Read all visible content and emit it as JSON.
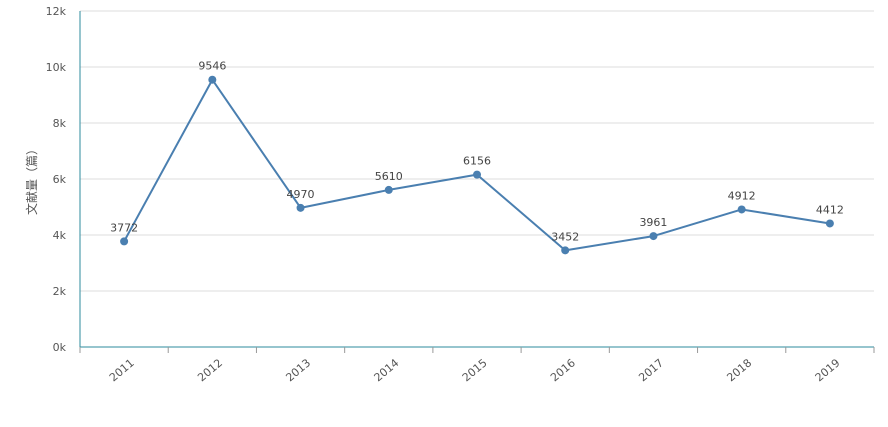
{
  "chart_data": {
    "type": "line",
    "title": "",
    "xlabel": "",
    "ylabel": "文献量（篇）",
    "categories": [
      "2011",
      "2012",
      "2013",
      "2014",
      "2015",
      "2016",
      "2017",
      "2018",
      "2019"
    ],
    "series": [
      {
        "values": [
          3772,
          9546,
          4970,
          5610,
          6156,
          3452,
          3961,
          4912,
          4412
        ]
      }
    ],
    "ylim": [
      0,
      12000
    ],
    "yticks": [
      0,
      2000,
      4000,
      6000,
      8000,
      10000,
      12000
    ],
    "ytick_labels": [
      "0k",
      "2k",
      "4k",
      "6k",
      "8k",
      "10k",
      "12k"
    ],
    "grid": true,
    "legend": "none",
    "colors": {
      "line": "#4a7fb0",
      "axis": "#2e8b9e",
      "grid": "#dddddd"
    }
  }
}
